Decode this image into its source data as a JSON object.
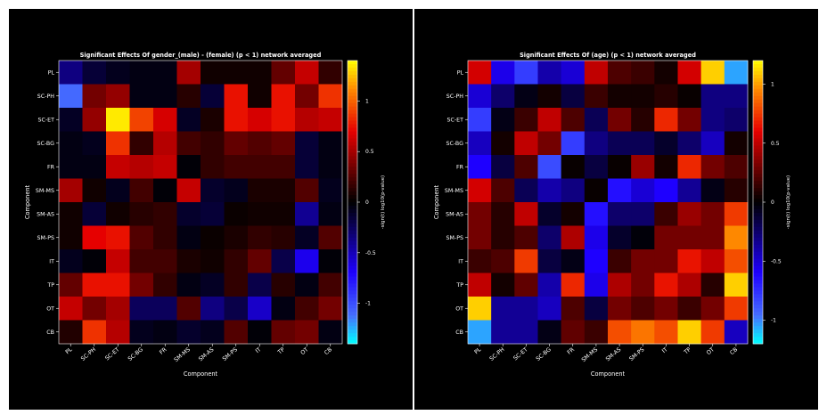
{
  "chart_data": [
    {
      "type": "heatmap",
      "title": "Significant Effects Of gender_(male) - (female) (p < 1) network averaged",
      "xlabel": "Component",
      "ylabel": "Component",
      "categories": [
        "PL",
        "SC-PH",
        "SC-ET",
        "SC-BG",
        "FR",
        "SM-MS",
        "SM-AS",
        "SM-PS",
        "IT",
        "TP",
        "OT",
        "CB"
      ],
      "colorbar": {
        "label": "-sign(t) log10(p-value)",
        "ticks": [
          "1",
          "0.5",
          "0",
          "-0.5",
          "-1"
        ],
        "tick_values": [
          1,
          0.5,
          0,
          -0.5,
          -1
        ],
        "range": [
          -1.4,
          1.4
        ]
      },
      "values": [
        [
          -0.35,
          -0.15,
          -0.08,
          -0.05,
          -0.05,
          0.5,
          0.05,
          0.05,
          0.05,
          0.3,
          0.6,
          0.15
        ],
        [
          -1.1,
          0.35,
          0.45,
          -0.05,
          -0.05,
          0.12,
          -0.15,
          0.75,
          0.05,
          0.75,
          0.35,
          0.85
        ],
        [
          -0.1,
          0.45,
          1.35,
          0.9,
          0.65,
          -0.1,
          0.08,
          0.75,
          0.65,
          0.75,
          0.55,
          0.6
        ],
        [
          -0.05,
          -0.08,
          0.85,
          0.15,
          0.55,
          0.2,
          0.15,
          0.3,
          0.25,
          0.3,
          -0.15,
          -0.05
        ],
        [
          -0.05,
          -0.05,
          0.6,
          0.55,
          0.6,
          -0.02,
          0.15,
          0.2,
          0.2,
          0.2,
          -0.15,
          -0.05
        ],
        [
          0.5,
          0.05,
          -0.08,
          0.2,
          -0.02,
          0.6,
          -0.12,
          -0.08,
          0.08,
          0.08,
          0.25,
          -0.08
        ],
        [
          0.05,
          -0.15,
          0.05,
          0.12,
          0.15,
          -0.12,
          -0.15,
          0.03,
          0.05,
          0.05,
          -0.4,
          -0.05
        ],
        [
          0.05,
          0.7,
          0.75,
          0.25,
          0.15,
          -0.05,
          0.03,
          0.08,
          0.15,
          0.12,
          -0.1,
          0.25
        ],
        [
          -0.08,
          -0.02,
          0.6,
          0.2,
          0.2,
          0.08,
          0.05,
          0.15,
          0.3,
          -0.2,
          -0.65,
          -0.02
        ],
        [
          0.3,
          0.75,
          0.75,
          0.35,
          0.15,
          -0.05,
          -0.1,
          0.15,
          -0.2,
          0.12,
          -0.05,
          0.2
        ],
        [
          0.6,
          0.35,
          0.5,
          -0.25,
          -0.25,
          0.25,
          -0.35,
          -0.2,
          -0.55,
          -0.05,
          0.2,
          0.35
        ],
        [
          0.1,
          0.85,
          0.55,
          -0.08,
          -0.05,
          -0.12,
          -0.08,
          0.25,
          -0.02,
          0.3,
          0.35,
          -0.05
        ]
      ]
    },
    {
      "type": "heatmap",
      "title": "Significant Effects Of (age) (p < 1) network averaged",
      "xlabel": "Component",
      "ylabel": "Component",
      "categories": [
        "PL",
        "SC-PH",
        "SC-ET",
        "SC-BG",
        "FR",
        "SM-MS",
        "SM-AS",
        "SM-PS",
        "IT",
        "TP",
        "OT",
        "CB"
      ],
      "colorbar": {
        "label": "-sign(t) log10(p-value)",
        "ticks": [
          "1",
          "0.5",
          "0",
          "-0.5",
          "-1"
        ],
        "tick_values": [
          1,
          0.5,
          0,
          -0.5,
          -1
        ],
        "range": [
          -1.2,
          1.2
        ]
      },
      "values": [
        [
          0.55,
          -0.55,
          -0.8,
          -0.4,
          -0.5,
          0.5,
          0.2,
          0.15,
          0.05,
          0.55,
          1.1,
          -1.05
        ],
        [
          -0.5,
          -0.25,
          -0.05,
          0.05,
          -0.15,
          0.15,
          0.05,
          0.05,
          0.1,
          0.02,
          -0.3,
          -0.3
        ],
        [
          -0.8,
          -0.05,
          0.15,
          0.5,
          0.2,
          -0.2,
          0.3,
          0.1,
          0.7,
          0.3,
          -0.3,
          -0.25
        ],
        [
          -0.45,
          0.05,
          0.5,
          0.3,
          -0.8,
          -0.3,
          -0.2,
          -0.2,
          -0.1,
          -0.25,
          -0.45,
          0.05
        ],
        [
          -0.6,
          -0.15,
          0.2,
          -0.85,
          0.02,
          -0.15,
          0.02,
          0.4,
          0.05,
          0.7,
          0.3,
          0.2
        ],
        [
          0.55,
          0.2,
          -0.2,
          -0.4,
          -0.3,
          0.02,
          -0.65,
          -0.5,
          -0.6,
          -0.35,
          -0.05,
          0.1
        ],
        [
          0.3,
          0.1,
          0.5,
          -0.1,
          0.05,
          -0.65,
          -0.25,
          -0.25,
          0.15,
          0.4,
          0.3,
          0.75
        ],
        [
          0.3,
          0.1,
          0.2,
          -0.25,
          0.45,
          -0.55,
          -0.1,
          -0.02,
          0.3,
          0.3,
          0.3,
          0.95
        ],
        [
          0.15,
          0.2,
          0.75,
          -0.15,
          -0.05,
          -0.6,
          0.15,
          0.3,
          0.3,
          0.65,
          0.5,
          0.8
        ],
        [
          0.5,
          0.05,
          0.25,
          -0.4,
          0.7,
          -0.55,
          0.45,
          0.3,
          0.65,
          0.45,
          0.1,
          1.1
        ],
        [
          1.1,
          -0.35,
          -0.35,
          -0.45,
          0.2,
          -0.15,
          0.3,
          0.2,
          0.3,
          0.15,
          0.3,
          0.75
        ],
        [
          -1.05,
          -0.35,
          -0.35,
          -0.05,
          0.25,
          0.15,
          0.8,
          0.9,
          0.8,
          1.1,
          0.75,
          -0.45
        ]
      ]
    }
  ]
}
